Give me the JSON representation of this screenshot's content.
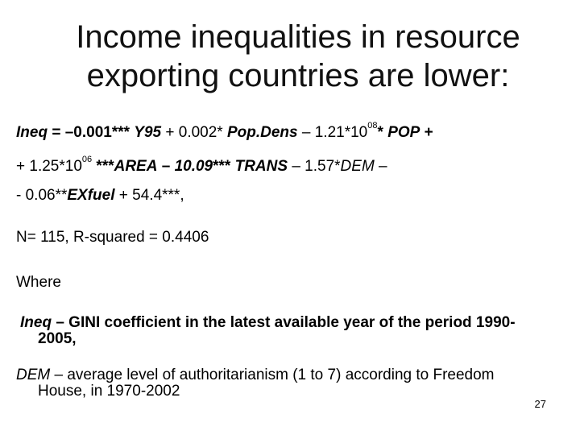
{
  "slide": {
    "title_line1": "Income inequalities in resource",
    "title_line2": "exporting  countries are lower:",
    "eq1": {
      "var": "Ineq",
      "eq": " = –0.001*** ",
      "y95": "Y95",
      "plus1": " + 0.002* ",
      "popdens": "Pop.Dens",
      "minus1": " – 1.21*10",
      "exp1": "08",
      "star": "* ",
      "pop": "POP",
      "plus2": " +"
    },
    "eq2": {
      "lead": "+ 1.25*10",
      "exp2": "06",
      "stars": " ***",
      "area": "AREA",
      "dash": " – ",
      "coef": "10.09",
      "trans_stars": "*** ",
      "trans": "TRANS",
      "minus": " – 1.57*",
      "dem": "DEM",
      "end": " –"
    },
    "eq3": {
      "lead": "- 0.06**",
      "exfuel": "EXfuel",
      "end": " + 54.4***,"
    },
    "stats": "N= 115, R-squared = 0.4406",
    "where": "Where",
    "def_ineq": {
      "var": "Ineq",
      "line1": " – GINI coefficient in the latest available year of the period  1990-",
      "line2": "2005,"
    },
    "def_dem": {
      "var": "DEM",
      "line1": " – average level of authoritarianism (1 to 7) according to Freedom",
      "line2": "House, in 1970-2002"
    },
    "page_number": "27"
  }
}
